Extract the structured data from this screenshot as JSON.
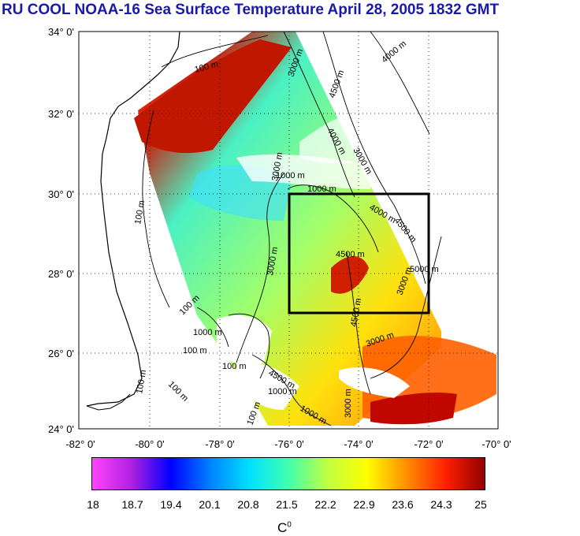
{
  "title": "RU COOL  NOAA-16 Sea Surface Temperature April 28, 2005 1832 GMT",
  "lat_ticks": [
    "34° 0'",
    "32° 0'",
    "30° 0'",
    "28° 0'",
    "26° 0'",
    "24° 0'"
  ],
  "lon_ticks": [
    "-82° 0'",
    "-80° 0'",
    "-78° 0'",
    "-76° 0'",
    "-74° 0'",
    "-72° 0'",
    "-70° 0'"
  ],
  "contour_labels": [
    "100 m",
    "3000 m",
    "4500 m",
    "4000 m",
    "3000 m",
    "4000 m",
    "1000 m",
    "100 m",
    "3000 m",
    "1000 m",
    "4000 m",
    "4500 m",
    "3000 m",
    "4500 m",
    "3000 m",
    "5000 m",
    "4500 m",
    "3000 m",
    "100 m",
    "100 m",
    "1000 m",
    "100 m",
    "4500 m",
    "100 m",
    "1000 m",
    "100 m",
    "1000 m",
    "3000 m",
    "100 m"
  ],
  "colorbar": {
    "labels": [
      "18",
      "18.7",
      "19.4",
      "20.1",
      "20.8",
      "21.5",
      "22.2",
      "22.9",
      "23.6",
      "24.3",
      "25"
    ],
    "units": "C",
    "units_sup": "0",
    "colors": [
      "#ff44ff",
      "#b020e0",
      "#0000ff",
      "#0080ff",
      "#00e0ff",
      "#40ffb0",
      "#c0ff40",
      "#ffff00",
      "#ff9000",
      "#ff2000",
      "#900000"
    ]
  },
  "map": {
    "region": "US Southeast coast / Florida / Bahamas",
    "box": "study area rectangle"
  }
}
